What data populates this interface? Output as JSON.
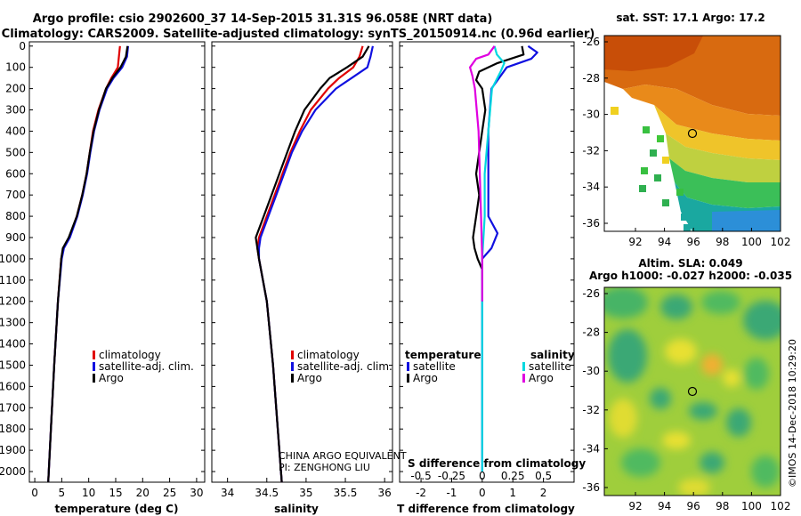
{
  "header": {
    "line1": "Argo profile: csio 2902600_37 14-Sep-2015 31.31S 96.058E (NRT data)",
    "line2": "Climatology: CARS2009. Satellite-adjusted climatology: synTS_20150914.nc (0.96d earlier)"
  },
  "colors": {
    "climatology": "#e00000",
    "satellite": "#1010e0",
    "argo": "#000000",
    "satellite_salinity": "#00d8e0",
    "argo_salinity": "#e000e0"
  },
  "depth_ticks": [
    0,
    100,
    200,
    300,
    400,
    500,
    600,
    700,
    800,
    900,
    1000,
    1100,
    1200,
    1300,
    1400,
    1500,
    1600,
    1700,
    1800,
    1900,
    2000
  ],
  "temperature_panel": {
    "xlabel": "temperature (deg C)",
    "xticks": [
      "0",
      "5",
      "10",
      "15",
      "20",
      "25",
      "30"
    ],
    "legend": [
      {
        "label": "climatology",
        "key": "climatology"
      },
      {
        "label": "satellite-adj. clim.",
        "key": "satellite"
      },
      {
        "label": "Argo",
        "key": "argo"
      }
    ]
  },
  "salinity_panel": {
    "xlabel": "salinity",
    "xticks": [
      "34",
      "34.5",
      "35",
      "35.5",
      "36"
    ],
    "legend": [
      {
        "label": "climatology",
        "key": "climatology"
      },
      {
        "label": "satellite-adj. clim.",
        "key": "satellite"
      },
      {
        "label": "Argo",
        "key": "argo"
      }
    ],
    "credit1": "CHINA ARGO EQUIVALENT",
    "credit2": "PI: ZENGHONG LIU"
  },
  "difference_panel": {
    "xlabel": "T difference from climatology",
    "xticks": [
      "-2",
      "-1",
      "0",
      "1",
      "2"
    ],
    "top_axis_label": "S difference from climatology",
    "top_ticks": [
      "-0.5",
      "-0.25",
      "0",
      "0.25",
      "0.5"
    ],
    "legend_temperature_title": "temperature",
    "legend_salinity_title": "salinity",
    "legend_temperature": [
      {
        "label": "satellite",
        "key": "satellite"
      },
      {
        "label": "Argo",
        "key": "argo"
      }
    ],
    "legend_salinity": [
      {
        "label": "satellite",
        "key": "satellite_salinity"
      },
      {
        "label": "Argo",
        "key": "argo_salinity"
      }
    ]
  },
  "sst_map": {
    "title": "sat. SST: 17.1 Argo: 17.2",
    "yticks": [
      "-26",
      "-28",
      "-30",
      "-32",
      "-34",
      "-36"
    ],
    "xticks": [
      "92",
      "94",
      "96",
      "98",
      "100",
      "102"
    ]
  },
  "sla_map": {
    "title1": "Altim. SLA: 0.049",
    "title2": "Argo h1000: -0.027 h2000: -0.035",
    "yticks": [
      "-26",
      "-28",
      "-30",
      "-32",
      "-34",
      "-36"
    ],
    "xticks": [
      "92",
      "94",
      "96",
      "98",
      "100",
      "102"
    ]
  },
  "watermark": "©IMOS 14-Dec-2018 10:29:20",
  "chart_data": [
    {
      "type": "line",
      "xlabel": "temperature (deg C)",
      "xlim": [
        -1,
        31.5
      ],
      "ylim": [
        2050,
        -20
      ],
      "y": [
        0,
        50,
        100,
        150,
        200,
        300,
        400,
        500,
        600,
        700,
        800,
        900,
        950,
        1000,
        1200,
        1500,
        1800,
        2000,
        2050
      ],
      "series": [
        {
          "name": "climatology",
          "key": "climatology",
          "values": [
            15.8,
            15.6,
            15.4,
            14.2,
            13.2,
            11.8,
            10.8,
            10.2,
            9.6,
            8.8,
            7.8,
            6.4,
            5.3,
            4.9,
            4.3,
            3.6,
            3.0,
            2.6,
            2.5
          ]
        },
        {
          "name": "satellite-adj. clim.",
          "key": "satellite",
          "values": [
            17.3,
            17.1,
            16.2,
            14.6,
            13.4,
            12.0,
            11.0,
            10.3,
            9.7,
            8.9,
            7.9,
            6.5,
            5.4,
            5.0,
            4.3,
            3.6,
            3.0,
            2.6,
            2.5
          ]
        },
        {
          "name": "Argo",
          "key": "argo",
          "values": [
            17.2,
            16.9,
            15.9,
            14.4,
            13.2,
            11.9,
            10.9,
            10.2,
            9.6,
            8.8,
            7.8,
            6.3,
            5.2,
            4.9,
            4.3,
            3.6,
            3.0,
            2.6,
            2.5
          ]
        }
      ]
    },
    {
      "type": "line",
      "xlabel": "salinity",
      "xlim": [
        33.8,
        36.1
      ],
      "ylim": [
        2050,
        -20
      ],
      "y": [
        0,
        50,
        100,
        150,
        200,
        300,
        400,
        500,
        600,
        700,
        800,
        900,
        950,
        1000,
        1100,
        1200,
        1500,
        1800,
        2000,
        2050
      ],
      "series": [
        {
          "name": "climatology",
          "key": "climatology",
          "values": [
            35.72,
            35.68,
            35.6,
            35.42,
            35.28,
            35.06,
            34.92,
            34.8,
            34.7,
            34.6,
            34.5,
            34.4,
            34.38,
            34.4,
            34.45,
            34.5,
            34.58,
            34.64,
            34.68,
            34.69
          ]
        },
        {
          "name": "satellite-adj. clim.",
          "key": "satellite",
          "values": [
            35.85,
            35.82,
            35.78,
            35.58,
            35.38,
            35.12,
            34.95,
            34.82,
            34.72,
            34.62,
            34.52,
            34.42,
            34.4,
            34.4,
            34.45,
            34.5,
            34.58,
            34.64,
            34.68,
            34.69
          ]
        },
        {
          "name": "Argo",
          "key": "argo",
          "values": [
            35.8,
            35.72,
            35.52,
            35.3,
            35.18,
            34.98,
            34.86,
            34.76,
            34.66,
            34.56,
            34.46,
            34.36,
            34.38,
            34.4,
            34.45,
            34.5,
            34.58,
            34.64,
            34.68,
            34.69
          ]
        }
      ]
    },
    {
      "type": "line",
      "xlabel": "T difference from climatology",
      "top_label": "S difference from climatology",
      "xlim": [
        -2.7,
        3.0
      ],
      "top_xlim": [
        -0.675,
        0.75
      ],
      "ylim": [
        2050,
        -20
      ],
      "series": [
        {
          "name": "satellite",
          "key": "satellite",
          "axis": "T",
          "y": [
            0,
            30,
            60,
            100,
            200,
            400,
            600,
            800,
            880,
            950,
            1000,
            1100,
            1200,
            1500,
            1800,
            2000
          ],
          "values": [
            1.5,
            1.8,
            1.6,
            0.8,
            0.3,
            0.2,
            0.2,
            0.2,
            0.5,
            0.3,
            0.0,
            0.0,
            0.0,
            0.0,
            0.0,
            0.0
          ]
        },
        {
          "name": "Argo",
          "key": "argo",
          "axis": "T",
          "y": [
            0,
            40,
            80,
            120,
            160,
            200,
            300,
            400,
            500,
            600,
            700,
            800,
            900,
            950,
            1000,
            1050,
            1100
          ],
          "values": [
            1.3,
            1.35,
            0.5,
            -0.1,
            -0.2,
            0.0,
            0.1,
            0.0,
            -0.1,
            -0.2,
            -0.1,
            -0.2,
            -0.3,
            -0.25,
            -0.15,
            0.0,
            0.0
          ]
        },
        {
          "name": "satellite",
          "key": "satellite_salinity",
          "axis": "S",
          "y": [
            0,
            40,
            80,
            120,
            200,
            400,
            600,
            800,
            1000,
            1200,
            1500,
            1800,
            2000
          ],
          "values": [
            0.1,
            0.12,
            0.18,
            0.15,
            0.08,
            0.05,
            0.02,
            0.02,
            0.0,
            0.0,
            0.0,
            0.0,
            0.0
          ]
        },
        {
          "name": "Argo",
          "key": "argo_salinity",
          "axis": "S",
          "y": [
            0,
            40,
            60,
            100,
            140,
            200,
            400,
            600,
            800,
            1000,
            1200
          ],
          "values": [
            0.1,
            0.05,
            -0.05,
            -0.1,
            -0.08,
            -0.06,
            -0.03,
            -0.02,
            -0.01,
            0.0,
            0.0
          ]
        }
      ]
    }
  ]
}
